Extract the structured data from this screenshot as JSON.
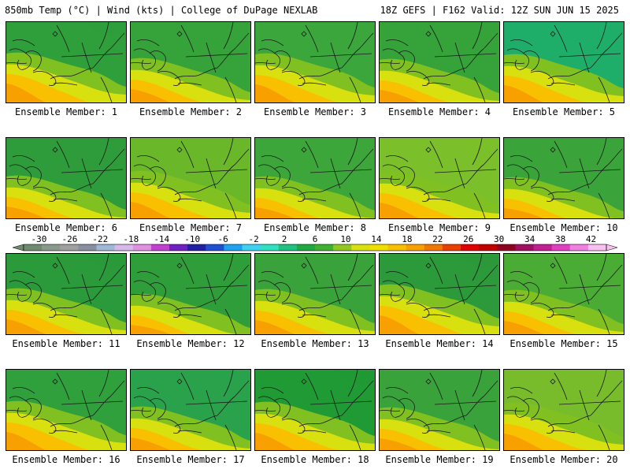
{
  "header": {
    "left_title": "850mb Temp (°C) | Wind (kts) | College of DuPage NEXLAB",
    "right_title": "18Z GEFS | F162 Valid: 12Z SUN JUN 15 2025"
  },
  "panels": [
    {
      "caption": "Ensemble Member: 1",
      "tint": "#2f9f3c"
    },
    {
      "caption": "Ensemble Member: 2",
      "tint": "#36a23a"
    },
    {
      "caption": "Ensemble Member: 3",
      "tint": "#3aa63c"
    },
    {
      "caption": "Ensemble Member: 4",
      "tint": "#35a23a"
    },
    {
      "caption": "Ensemble Member: 5",
      "tint": "#1fae6a"
    },
    {
      "caption": "Ensemble Member: 6",
      "tint": "#2e9c3a"
    },
    {
      "caption": "Ensemble Member: 7",
      "tint": "#6ab82a"
    },
    {
      "caption": "Ensemble Member: 8",
      "tint": "#3ca63a"
    },
    {
      "caption": "Ensemble Member: 9",
      "tint": "#7bc02a"
    },
    {
      "caption": "Ensemble Member: 10",
      "tint": "#3aa43a"
    },
    {
      "caption": "Ensemble Member: 11",
      "tint": "#2a9a3a"
    },
    {
      "caption": "Ensemble Member: 12",
      "tint": "#2f9e3a"
    },
    {
      "caption": "Ensemble Member: 13",
      "tint": "#3aa23a"
    },
    {
      "caption": "Ensemble Member: 14",
      "tint": "#2c9a3a"
    },
    {
      "caption": "Ensemble Member: 15",
      "tint": "#4aac34"
    },
    {
      "caption": "Ensemble Member: 16",
      "tint": "#2fa03c"
    },
    {
      "caption": "Ensemble Member: 17",
      "tint": "#2aa24c"
    },
    {
      "caption": "Ensemble Member: 18",
      "tint": "#1f9a34"
    },
    {
      "caption": "Ensemble Member: 19",
      "tint": "#3aa23a"
    },
    {
      "caption": "Ensemble Member: 20",
      "tint": "#78bc2c"
    }
  ],
  "colorbar": {
    "labels": [
      "-30",
      "-26",
      "-22",
      "-18",
      "-14",
      "-10",
      "-6",
      "-2",
      "2",
      "6",
      "10",
      "14",
      "18",
      "22",
      "26",
      "30",
      "34",
      "38",
      "42"
    ],
    "colors": [
      "#6f8a6f",
      "#8a9a8a",
      "#a0a0a0",
      "#8890a0",
      "#a0b8d8",
      "#d8b8e8",
      "#e090e0",
      "#c040d0",
      "#7020c0",
      "#2020a0",
      "#2050d0",
      "#20a0f0",
      "#40d0f0",
      "#30e0c0",
      "#20c080",
      "#20a840",
      "#40b030",
      "#90c820",
      "#d8e010",
      "#f0e000",
      "#f8c000",
      "#f8a000",
      "#f07800",
      "#e84000",
      "#e00000",
      "#c00000",
      "#900020",
      "#a01060",
      "#c02090",
      "#e040c0",
      "#f080e0",
      "#f8c0f0"
    ]
  }
}
